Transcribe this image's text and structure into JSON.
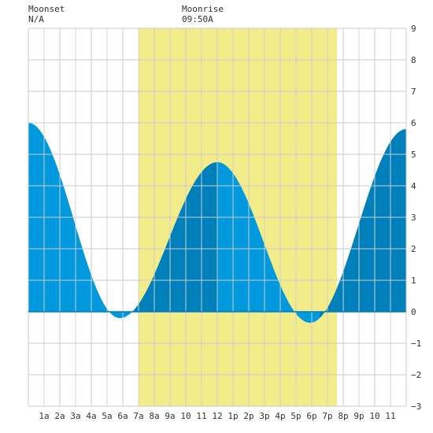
{
  "header": {
    "moonset_label": "Moonset",
    "moonset_value": "N/A",
    "moonrise_label": "Moonrise",
    "moonrise_value": "09:50A"
  },
  "colors": {
    "background": "#ffffff",
    "grid": "#cccccc",
    "daylight": "#f3ec8a",
    "tide_light": "#0099dd",
    "tide_dark": "#0080bb",
    "text": "#333333"
  },
  "chart_data": {
    "type": "area",
    "xlabel": "",
    "ylabel": "",
    "xlim": [
      0,
      24
    ],
    "ylim": [
      -3,
      9
    ],
    "x_ticks": [
      {
        "x": 1,
        "label": "1a"
      },
      {
        "x": 2,
        "label": "2a"
      },
      {
        "x": 3,
        "label": "3a"
      },
      {
        "x": 4,
        "label": "4a"
      },
      {
        "x": 5,
        "label": "5a"
      },
      {
        "x": 6,
        "label": "6a"
      },
      {
        "x": 7,
        "label": "7a"
      },
      {
        "x": 8,
        "label": "8a"
      },
      {
        "x": 9,
        "label": "9a"
      },
      {
        "x": 10,
        "label": "10"
      },
      {
        "x": 11,
        "label": "11"
      },
      {
        "x": 12,
        "label": "12"
      },
      {
        "x": 13,
        "label": "1p"
      },
      {
        "x": 14,
        "label": "2p"
      },
      {
        "x": 15,
        "label": "3p"
      },
      {
        "x": 16,
        "label": "4p"
      },
      {
        "x": 17,
        "label": "5p"
      },
      {
        "x": 18,
        "label": "6p"
      },
      {
        "x": 19,
        "label": "7p"
      },
      {
        "x": 20,
        "label": "8p"
      },
      {
        "x": 21,
        "label": "9p"
      },
      {
        "x": 22,
        "label": "10"
      },
      {
        "x": 23,
        "label": "11"
      }
    ],
    "y_ticks": [
      -3,
      -2,
      -1,
      0,
      1,
      2,
      3,
      4,
      5,
      6,
      7,
      8,
      9
    ],
    "daylight": {
      "start": 7.0,
      "end": 19.6
    },
    "extremes": [
      {
        "x": 0.0,
        "y": 6.0
      },
      {
        "x": 5.8,
        "y": -0.2
      },
      {
        "x": 12.0,
        "y": 4.75
      },
      {
        "x": 17.9,
        "y": -0.35
      },
      {
        "x": 24.0,
        "y": 5.8
      }
    ],
    "shading": [
      {
        "from": 0.0,
        "to": 6.5,
        "tone": "light"
      },
      {
        "from": 6.5,
        "to": 12.0,
        "tone": "dark"
      },
      {
        "from": 12.0,
        "to": 18.5,
        "tone": "light"
      },
      {
        "from": 18.5,
        "to": 24.0,
        "tone": "dark"
      }
    ],
    "grid": true
  }
}
